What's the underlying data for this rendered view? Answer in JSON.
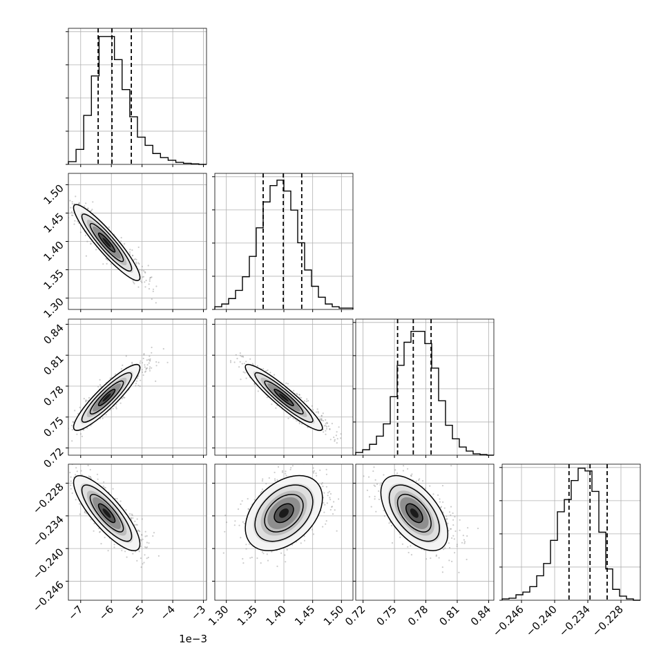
{
  "chart_data": {
    "type": "corner",
    "grid": true,
    "quantile_lines": "dashed",
    "x_offset_label": "1e−3",
    "parameters": [
      {
        "range": [
          -7.4,
          -2.9
        ],
        "ticks": [
          -7,
          -6,
          -5,
          -4,
          -3
        ],
        "tick_labels": [
          "−7",
          "−6",
          "−5",
          "−4",
          "−3"
        ],
        "quantiles": [
          -6.43,
          -5.98,
          -5.35
        ],
        "peak": -6.05,
        "histogram": [
          0.02,
          0.11,
          0.36,
          0.65,
          0.94,
          0.94,
          0.77,
          0.55,
          0.35,
          0.2,
          0.14,
          0.08,
          0.05,
          0.03,
          0.015,
          0.008,
          0.004,
          0
        ]
      },
      {
        "range": [
          1.28,
          1.52
        ],
        "ticks": [
          1.3,
          1.35,
          1.4,
          1.45,
          1.5
        ],
        "tick_labels": [
          "1.30",
          "1.35",
          "1.40",
          "1.45",
          "1.50"
        ],
        "quantiles": [
          1.364,
          1.399,
          1.431
        ],
        "peak": 1.4,
        "histogram": [
          0.02,
          0.04,
          0.08,
          0.14,
          0.24,
          0.39,
          0.6,
          0.79,
          0.91,
          0.95,
          0.87,
          0.73,
          0.49,
          0.29,
          0.17,
          0.09,
          0.04,
          0.02,
          0.01,
          0.01
        ]
      },
      {
        "range": [
          0.713,
          0.845
        ],
        "ticks": [
          0.72,
          0.75,
          0.78,
          0.81,
          0.84
        ],
        "tick_labels": [
          "0.72",
          "0.75",
          "0.78",
          "0.81",
          "0.84"
        ],
        "quantiles": [
          0.753,
          0.768,
          0.785
        ],
        "peak": 0.769,
        "histogram": [
          0.02,
          0.04,
          0.08,
          0.14,
          0.23,
          0.43,
          0.66,
          0.83,
          0.91,
          0.91,
          0.82,
          0.64,
          0.4,
          0.22,
          0.12,
          0.06,
          0.03,
          0.01,
          0.005,
          0
        ]
      },
      {
        "range": [
          -0.2495,
          -0.2245
        ],
        "ticks": [
          -0.246,
          -0.24,
          -0.234,
          -0.228
        ],
        "tick_labels": [
          "−0.246",
          "−0.240",
          "−0.234",
          "−0.228"
        ],
        "quantiles": [
          -0.2374,
          -0.2336,
          -0.2305
        ],
        "peak": -0.2336,
        "histogram": [
          0.01,
          0.015,
          0.04,
          0.06,
          0.1,
          0.18,
          0.27,
          0.44,
          0.65,
          0.74,
          0.88,
          0.97,
          0.95,
          0.8,
          0.5,
          0.23,
          0.08,
          0.03,
          0.01,
          0
        ]
      }
    ],
    "correlations": [
      {
        "row": 1,
        "col": 0,
        "rho": -0.92,
        "center": [
          -6.15,
          1.398
        ]
      },
      {
        "row": 2,
        "col": 0,
        "rho": 0.9,
        "center": [
          -6.15,
          0.769
        ]
      },
      {
        "row": 2,
        "col": 1,
        "rho": -0.93,
        "center": [
          1.4,
          0.769
        ]
      },
      {
        "row": 3,
        "col": 0,
        "rho": -0.82,
        "center": [
          -6.15,
          -0.2335
        ]
      },
      {
        "row": 3,
        "col": 1,
        "rho": 0.4,
        "center": [
          1.4,
          -0.2335
        ]
      },
      {
        "row": 3,
        "col": 2,
        "rho": -0.55,
        "center": [
          0.769,
          -0.2335
        ]
      }
    ]
  }
}
